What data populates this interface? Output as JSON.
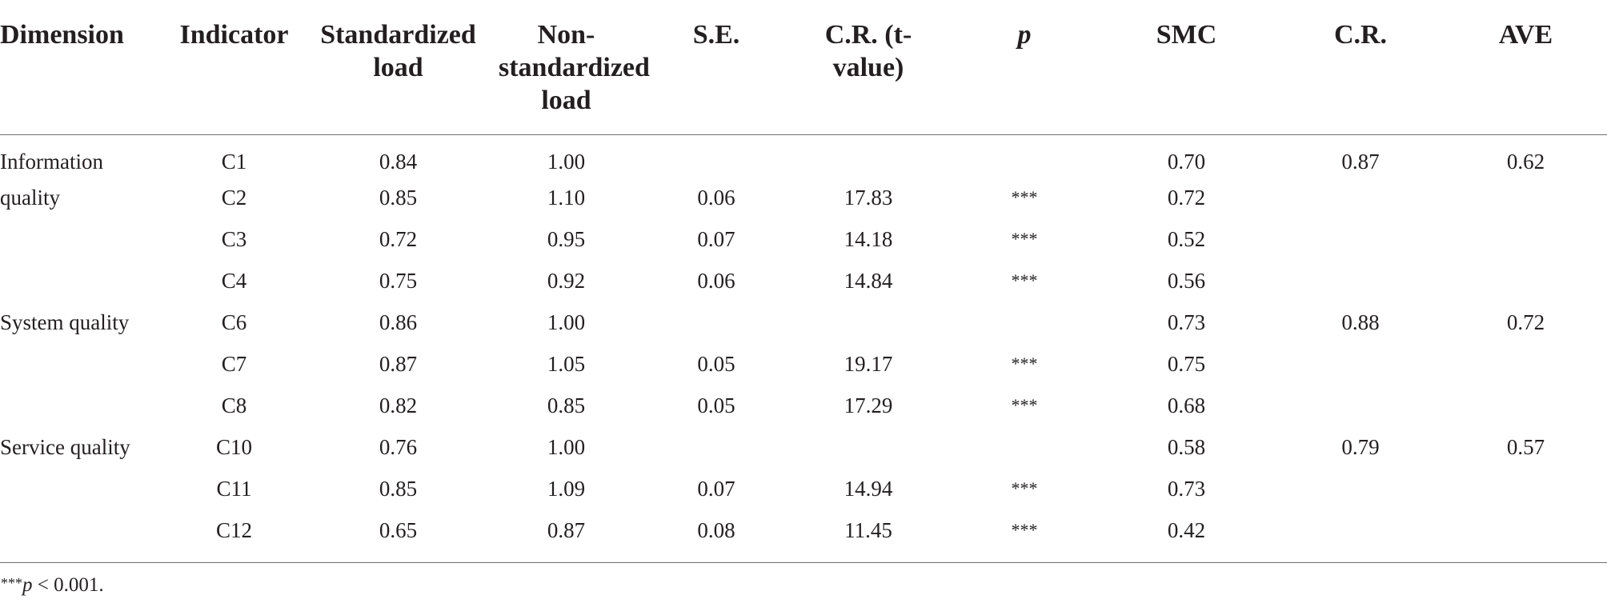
{
  "columns": [
    {
      "key": "dimension",
      "label": "Dimension"
    },
    {
      "key": "indicator",
      "label": "Indicator"
    },
    {
      "key": "std_load",
      "label": "Standardized load"
    },
    {
      "key": "nonstd_load",
      "label": "Non-standardized load"
    },
    {
      "key": "se",
      "label": "S.E."
    },
    {
      "key": "cr_t",
      "label": "C.R. (t-value)"
    },
    {
      "key": "p",
      "label": "p"
    },
    {
      "key": "smc",
      "label": "SMC"
    },
    {
      "key": "cr",
      "label": "C.R."
    },
    {
      "key": "ave",
      "label": "AVE"
    }
  ],
  "rows": [
    {
      "dimension": "Information",
      "indicator": "C1",
      "std_load": "0.84",
      "nonstd_load": "1.00",
      "se": "",
      "cr_t": "",
      "p": "",
      "smc": "0.70",
      "cr": "0.87",
      "ave": "0.62"
    },
    {
      "dimension": "quality",
      "indicator": "C2",
      "std_load": "0.85",
      "nonstd_load": "1.10",
      "se": "0.06",
      "cr_t": "17.83",
      "p": "***",
      "smc": "0.72",
      "cr": "",
      "ave": ""
    },
    {
      "dimension": "",
      "indicator": "C3",
      "std_load": "0.72",
      "nonstd_load": "0.95",
      "se": "0.07",
      "cr_t": "14.18",
      "p": "***",
      "smc": "0.52",
      "cr": "",
      "ave": ""
    },
    {
      "dimension": "",
      "indicator": "C4",
      "std_load": "0.75",
      "nonstd_load": "0.92",
      "se": "0.06",
      "cr_t": "14.84",
      "p": "***",
      "smc": "0.56",
      "cr": "",
      "ave": ""
    },
    {
      "dimension": "System quality",
      "indicator": "C6",
      "std_load": "0.86",
      "nonstd_load": "1.00",
      "se": "",
      "cr_t": "",
      "p": "",
      "smc": "0.73",
      "cr": "0.88",
      "ave": "0.72"
    },
    {
      "dimension": "",
      "indicator": "C7",
      "std_load": "0.87",
      "nonstd_load": "1.05",
      "se": "0.05",
      "cr_t": "19.17",
      "p": "***",
      "smc": "0.75",
      "cr": "",
      "ave": ""
    },
    {
      "dimension": "",
      "indicator": "C8",
      "std_load": "0.82",
      "nonstd_load": "0.85",
      "se": "0.05",
      "cr_t": "17.29",
      "p": "***",
      "smc": "0.68",
      "cr": "",
      "ave": ""
    },
    {
      "dimension": "Service quality",
      "indicator": "C10",
      "std_load": "0.76",
      "nonstd_load": "1.00",
      "se": "",
      "cr_t": "",
      "p": "",
      "smc": "0.58",
      "cr": "0.79",
      "ave": "0.57"
    },
    {
      "dimension": "",
      "indicator": "C11",
      "std_load": "0.85",
      "nonstd_load": "1.09",
      "se": "0.07",
      "cr_t": "14.94",
      "p": "***",
      "smc": "0.73",
      "cr": "",
      "ave": ""
    },
    {
      "dimension": "",
      "indicator": "C12",
      "std_load": "0.65",
      "nonstd_load": "0.87",
      "se": "0.08",
      "cr_t": "11.45",
      "p": "***",
      "smc": "0.42",
      "cr": "",
      "ave": ""
    }
  ],
  "footnote": {
    "stars": "***",
    "p_symbol": "p",
    "text": " < 0.001."
  }
}
